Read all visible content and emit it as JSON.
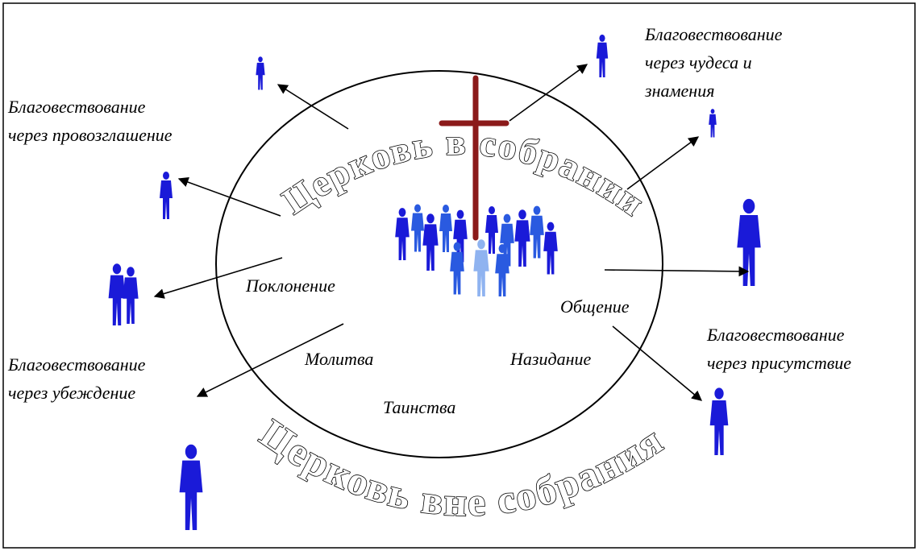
{
  "inner_arc_title": "Церковь в собрании",
  "outer_arc_title": "Церковь вне собрания",
  "inner_words": {
    "worship": "Поклонение",
    "fellowship": "Общение",
    "prayer": "Молитва",
    "edification": "Назидание",
    "sacraments": "Таинства"
  },
  "outer_labels": {
    "miracles": [
      "Благовествование",
      "через чудеса и",
      "знамения"
    ],
    "proclamation": [
      "Благовествование",
      "через провозглашение"
    ],
    "persuasion": [
      "Благовествование",
      "через убеждение"
    ],
    "presence": [
      "Благовествование",
      "через присутствие"
    ]
  }
}
